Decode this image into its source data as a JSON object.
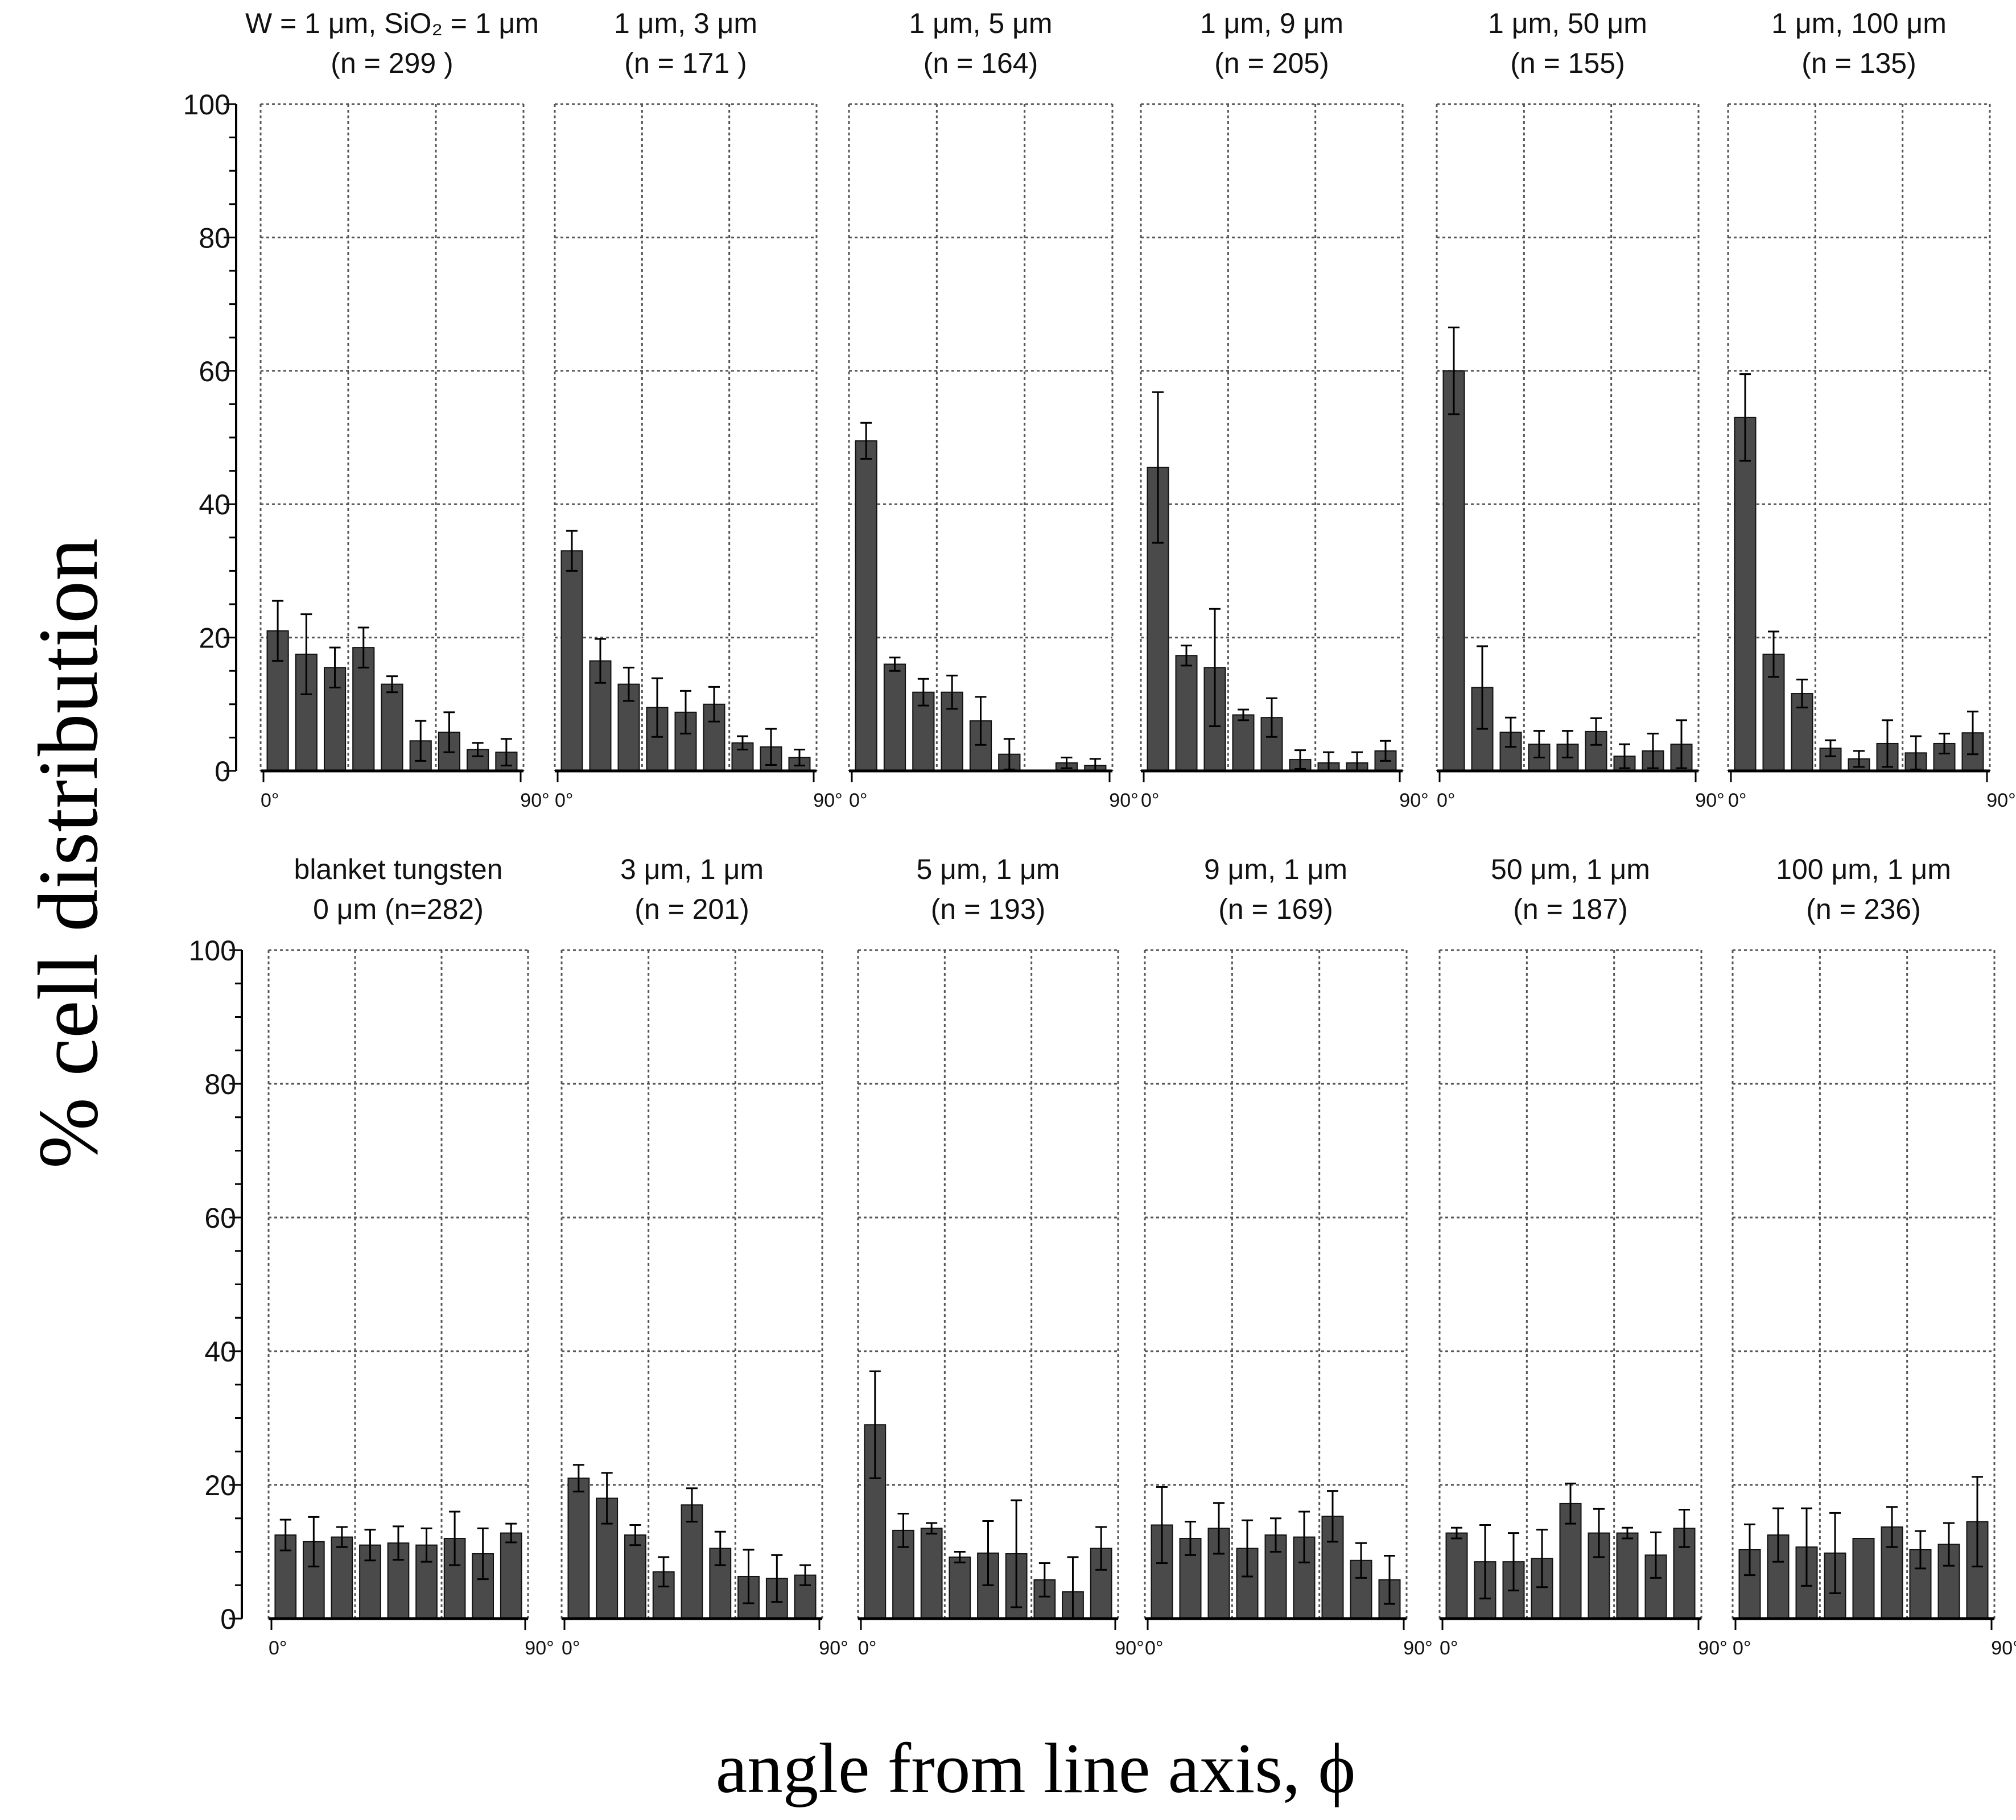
{
  "figure": {
    "ylabel": "% cell distribution",
    "xlabel": "angle from line axis, ϕ"
  },
  "chart_data": {
    "type": "bar",
    "ylim": [
      0,
      100
    ],
    "yticks": [
      "0",
      "20",
      "40",
      "60",
      "80",
      "100"
    ],
    "x_start_label": "0°",
    "x_end_label": "90°",
    "grid": true,
    "panels": [
      {
        "title1": "W = 1 μm, SiO₂ = 1 μm",
        "title2": "(n = 299 )",
        "values": [
          21,
          17.5,
          15.5,
          18.5,
          13,
          4.5,
          5.8,
          3.2,
          2.8
        ],
        "errors": [
          4.5,
          6,
          3,
          3,
          1.2,
          3,
          3,
          1,
          2
        ]
      },
      {
        "title1": "1 μm, 3 μm",
        "title2": "(n = 171 )",
        "values": [
          33,
          16.5,
          13,
          9.5,
          8.8,
          10,
          4.2,
          3.6,
          2
        ],
        "errors": [
          3,
          3.3,
          2.5,
          4.4,
          3.2,
          2.6,
          1,
          2.7,
          1.2
        ]
      },
      {
        "title1": "1 μm, 5 μm",
        "title2": "(n = 164)",
        "values": [
          49.5,
          16,
          11.8,
          11.8,
          7.5,
          2.5,
          0,
          1.2,
          0.8
        ],
        "errors": [
          2.7,
          1,
          2,
          2.5,
          3.6,
          2.3,
          0,
          0.8,
          1
        ]
      },
      {
        "title1": "1 μm, 9 μm",
        "title2": "(n = 205)",
        "values": [
          45.5,
          17.3,
          15.5,
          8.4,
          8,
          1.7,
          1.2,
          1.2,
          3
        ],
        "errors": [
          11.3,
          1.5,
          8.8,
          0.8,
          2.9,
          1.4,
          1.6,
          1.6,
          1.5
        ]
      },
      {
        "title1": "1 μm, 50 μm",
        "title2": "(n = 155)",
        "values": [
          60,
          12.5,
          5.8,
          4,
          4,
          5.9,
          2.2,
          3,
          4
        ],
        "errors": [
          6.5,
          6.2,
          2.2,
          2,
          2,
          2,
          1.8,
          2.6,
          3.6
        ]
      },
      {
        "title1": "1 μm, 100 μm",
        "title2": "(n = 135)",
        "values": [
          53,
          17.5,
          11.6,
          3.4,
          1.8,
          4.1,
          2.7,
          4.1,
          5.7
        ],
        "errors": [
          6.5,
          3.4,
          2.1,
          1.2,
          1.2,
          3.5,
          2.5,
          1.5,
          3.2
        ]
      },
      {
        "title1": "blanket tungsten",
        "title2": "0 μm  (n=282)",
        "values": [
          12.5,
          11.5,
          12.2,
          11,
          11.3,
          11,
          12,
          9.7,
          12.8
        ],
        "errors": [
          2.3,
          3.7,
          1.5,
          2.3,
          2.5,
          2.5,
          4,
          3.8,
          1.4
        ]
      },
      {
        "title1": "3 μm, 1 μm",
        "title2": "(n = 201)",
        "values": [
          21,
          18,
          12.5,
          7,
          17,
          10.5,
          6.3,
          6,
          6.5
        ],
        "errors": [
          2,
          3.8,
          1.5,
          2.2,
          2.5,
          2.5,
          4,
          3.5,
          1.5
        ]
      },
      {
        "title1": "5 μm, 1 μm",
        "title2": "(n = 193)",
        "values": [
          29,
          13.2,
          13.5,
          9.2,
          9.8,
          9.7,
          5.8,
          4,
          10.5
        ],
        "errors": [
          8,
          2.5,
          0.8,
          0.8,
          4.8,
          8,
          2.5,
          5.2,
          3.2
        ]
      },
      {
        "title1": "9 μm, 1 μm",
        "title2": "(n = 169)",
        "values": [
          14,
          12,
          13.5,
          10.5,
          12.5,
          12.2,
          15.3,
          8.7,
          5.8
        ],
        "errors": [
          5.7,
          2.5,
          3.8,
          4.2,
          2.5,
          3.8,
          3.8,
          2.6,
          3.6
        ]
      },
      {
        "title1": "50 μm, 1 μm",
        "title2": "(n = 187)",
        "values": [
          12.8,
          8.5,
          8.5,
          9,
          17.2,
          12.8,
          12.8,
          9.5,
          13.5
        ],
        "errors": [
          0.8,
          5.5,
          4.3,
          4.3,
          3,
          3.6,
          0.8,
          3.4,
          2.8
        ]
      },
      {
        "title1": "100 μm, 1 μm",
        "title2": "(n = 236)",
        "values": [
          10.3,
          12.5,
          10.7,
          9.8,
          12,
          13.7,
          10.3,
          11.1,
          14.5
        ],
        "errors": [
          3.8,
          4,
          5.8,
          6,
          0,
          3,
          2.8,
          3.2,
          6.7
        ]
      }
    ]
  }
}
